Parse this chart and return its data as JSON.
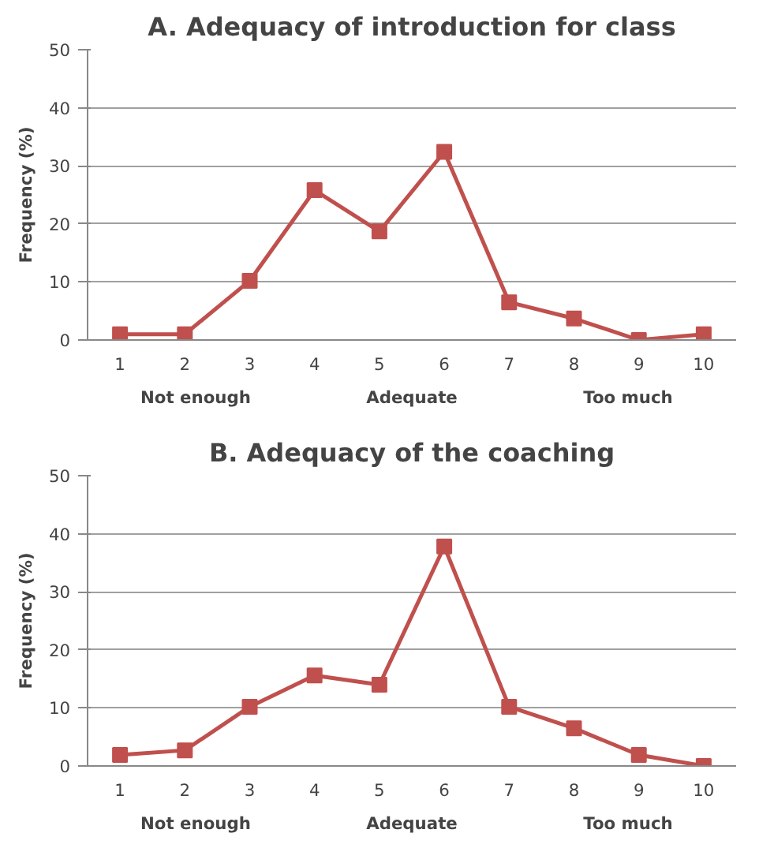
{
  "chart_data": [
    {
      "type": "line",
      "title": "A. Adequacy of introduction for class",
      "ylabel": "Frequency (%)",
      "categories": [
        "1",
        "2",
        "3",
        "4",
        "5",
        "6",
        "7",
        "8",
        "9",
        "10"
      ],
      "series": [
        {
          "color": "#c0504d",
          "values": [
            1,
            1,
            10.2,
            25.8,
            18.7,
            32.4,
            6.5,
            3.7,
            0,
            1
          ]
        }
      ],
      "ylim": [
        0,
        50
      ],
      "yticks": [
        0,
        10,
        20,
        30,
        40,
        50
      ],
      "grid": "y",
      "marker": "square",
      "line_style": "solid",
      "annotations": [
        "Not enough",
        "Adequate",
        "Too much"
      ]
    },
    {
      "type": "line",
      "title": "B. Adequacy of the coaching",
      "ylabel": "Frequency (%)",
      "categories": [
        "1",
        "2",
        "3",
        "4",
        "5",
        "6",
        "7",
        "8",
        "9",
        "10"
      ],
      "series": [
        {
          "color": "#c0504d",
          "values": [
            1.9,
            2.7,
            10.2,
            15.6,
            14,
            37.8,
            10.2,
            6.5,
            1.9,
            0
          ]
        }
      ],
      "ylim": [
        0,
        50
      ],
      "yticks": [
        0,
        10,
        20,
        30,
        40,
        50
      ],
      "grid": "y",
      "marker": "square",
      "line_style": "solid",
      "annotations": [
        "Not enough",
        "Adequate",
        "Too much"
      ]
    }
  ]
}
